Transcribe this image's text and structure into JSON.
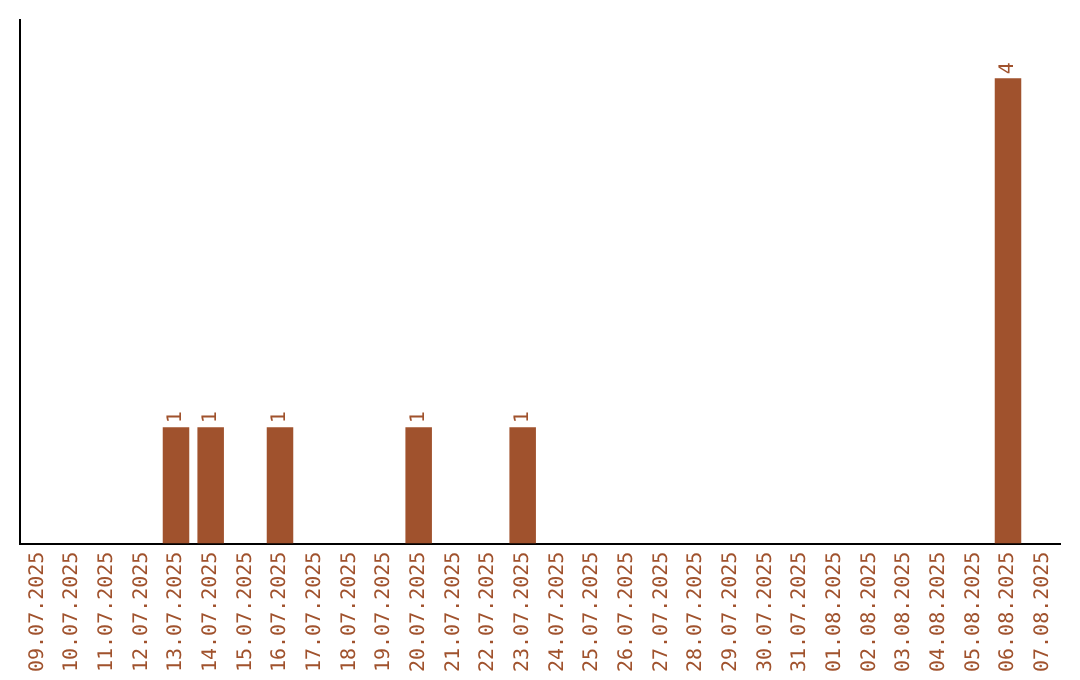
{
  "chart_data": {
    "type": "bar",
    "categories": [
      "09.07.2025",
      "10.07.2025",
      "11.07.2025",
      "12.07.2025",
      "13.07.2025",
      "14.07.2025",
      "15.07.2025",
      "16.07.2025",
      "17.07.2025",
      "18.07.2025",
      "19.07.2025",
      "20.07.2025",
      "21.07.2025",
      "22.07.2025",
      "23.07.2025",
      "24.07.2025",
      "25.07.2025",
      "26.07.2025",
      "27.07.2025",
      "28.07.2025",
      "29.07.2025",
      "30.07.2025",
      "31.07.2025",
      "01.08.2025",
      "02.08.2025",
      "03.08.2025",
      "04.08.2025",
      "05.08.2025",
      "06.08.2025",
      "07.08.2025"
    ],
    "values": [
      0,
      0,
      0,
      0,
      1,
      1,
      0,
      1,
      0,
      0,
      0,
      1,
      0,
      0,
      1,
      0,
      0,
      0,
      0,
      0,
      0,
      0,
      0,
      0,
      0,
      0,
      0,
      0,
      4,
      0
    ],
    "color": "#a0522d",
    "value_labels": [
      null,
      null,
      null,
      null,
      "1",
      "1",
      null,
      "1",
      null,
      null,
      null,
      "1",
      null,
      null,
      "1",
      null,
      null,
      null,
      null,
      null,
      null,
      null,
      null,
      null,
      null,
      null,
      null,
      null,
      "4",
      null
    ],
    "tick_labels": "x",
    "grid": false,
    "legend": false
  }
}
